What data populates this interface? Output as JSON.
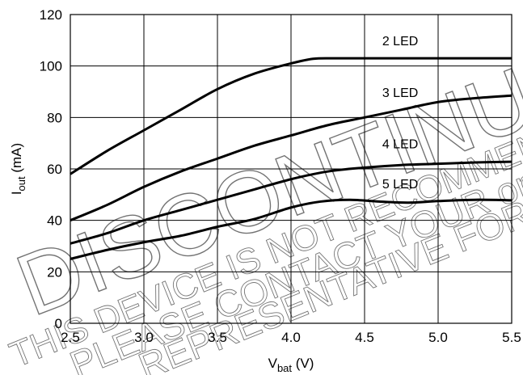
{
  "chart_data": {
    "type": "line",
    "xlabel": {
      "main": "V",
      "sub": "bat",
      "unit": " (V)"
    },
    "ylabel": {
      "main": "I",
      "sub": "out",
      "unit": " (mA)"
    },
    "xlim": [
      2.5,
      5.5
    ],
    "ylim": [
      0,
      120
    ],
    "x_ticks": [
      "2.5",
      "3.0",
      "3.5",
      "4.0",
      "4.5",
      "5.0",
      "5.5"
    ],
    "y_ticks": [
      "0",
      "20",
      "40",
      "60",
      "80",
      "100",
      "120"
    ],
    "grid": true,
    "series": [
      {
        "name": "2 LED",
        "points": [
          [
            2.5,
            58
          ],
          [
            2.75,
            67
          ],
          [
            3.0,
            75
          ],
          [
            3.25,
            83
          ],
          [
            3.5,
            91
          ],
          [
            3.75,
            97
          ],
          [
            4.0,
            101
          ],
          [
            4.15,
            102.8
          ],
          [
            4.3,
            103
          ],
          [
            4.5,
            103
          ],
          [
            5.0,
            103
          ],
          [
            5.5,
            103
          ]
        ]
      },
      {
        "name": "3 LED",
        "points": [
          [
            2.5,
            40
          ],
          [
            2.75,
            46
          ],
          [
            3.0,
            53
          ],
          [
            3.25,
            59
          ],
          [
            3.5,
            64
          ],
          [
            3.75,
            69
          ],
          [
            4.0,
            73
          ],
          [
            4.25,
            77
          ],
          [
            4.5,
            80
          ],
          [
            4.75,
            83
          ],
          [
            5.0,
            86
          ],
          [
            5.25,
            87.5
          ],
          [
            5.5,
            88.5
          ]
        ]
      },
      {
        "name": "4 LED",
        "points": [
          [
            2.5,
            31
          ],
          [
            2.75,
            35
          ],
          [
            3.0,
            40
          ],
          [
            3.25,
            44
          ],
          [
            3.5,
            48
          ],
          [
            3.75,
            52
          ],
          [
            4.0,
            56
          ],
          [
            4.25,
            59
          ],
          [
            4.5,
            60.5
          ],
          [
            4.75,
            61.5
          ],
          [
            5.0,
            62
          ],
          [
            5.25,
            62.5
          ],
          [
            5.5,
            62.8
          ]
        ]
      },
      {
        "name": "5 LED",
        "points": [
          [
            2.5,
            25
          ],
          [
            2.75,
            28.5
          ],
          [
            3.0,
            31.5
          ],
          [
            3.25,
            34
          ],
          [
            3.5,
            37.5
          ],
          [
            3.75,
            40.5
          ],
          [
            4.0,
            45
          ],
          [
            4.2,
            47.3
          ],
          [
            4.4,
            48
          ],
          [
            4.6,
            47.3
          ],
          [
            4.8,
            46.9
          ],
          [
            5.0,
            47.5
          ],
          [
            5.25,
            48
          ],
          [
            5.5,
            47.8
          ]
        ]
      }
    ],
    "annotations": [
      {
        "text": "2 LED",
        "x": 4.62,
        "y": 108
      },
      {
        "text": "3 LED",
        "x": 4.62,
        "y": 88
      },
      {
        "text": "4 LED",
        "x": 4.62,
        "y": 68
      },
      {
        "text": "5 LED",
        "x": 4.62,
        "y": 52.5
      }
    ]
  },
  "watermark": {
    "lines": [
      "DISCONTINUED",
      "THIS DEVICE IS NOT RECOMMENDED FOR NEW DESIGN.",
      "PLEASE CONTACT YOUR onsemi",
      "REPRESENTATIVE FOR INFORMATION"
    ]
  }
}
